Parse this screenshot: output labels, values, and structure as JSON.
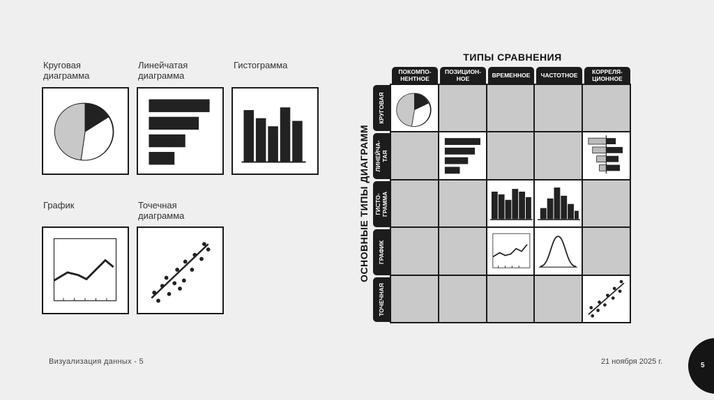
{
  "examples": [
    {
      "id": "pie",
      "label": "Круговая\nдиаграмма"
    },
    {
      "id": "bar",
      "label": "Линейчатая\nдиаграмма"
    },
    {
      "id": "hist",
      "label": "Гистограмма"
    },
    {
      "id": "line",
      "label": "График"
    },
    {
      "id": "scatter",
      "label": "Точечная\nдиаграмма"
    }
  ],
  "matrix": {
    "title": "ТИПЫ СРАВНЕНИЯ",
    "axis_title": "ОСНОВНЫЕ ТИПЫ ДИАГРАММ",
    "columns": [
      "ПОКОМПО-\nНЕНТНОЕ",
      "ПОЗИЦИОН-\nНОЕ",
      "ВРЕМЕННОЕ",
      "ЧАСТОТНОЕ",
      "КОРРЕЛЯ-\nЦИОННОЕ"
    ],
    "rows": [
      "КРУГОВАЯ",
      "ЛИНЕЙЧА-\nТАЯ",
      "ГИСТО-\nГРАММА",
      "ГРАФИК",
      "ТОЧЕЧНАЯ"
    ]
  },
  "footer": {
    "left": "Визуализация данных - 5",
    "date": "21 ноября 2025 г.",
    "page": "5"
  }
}
